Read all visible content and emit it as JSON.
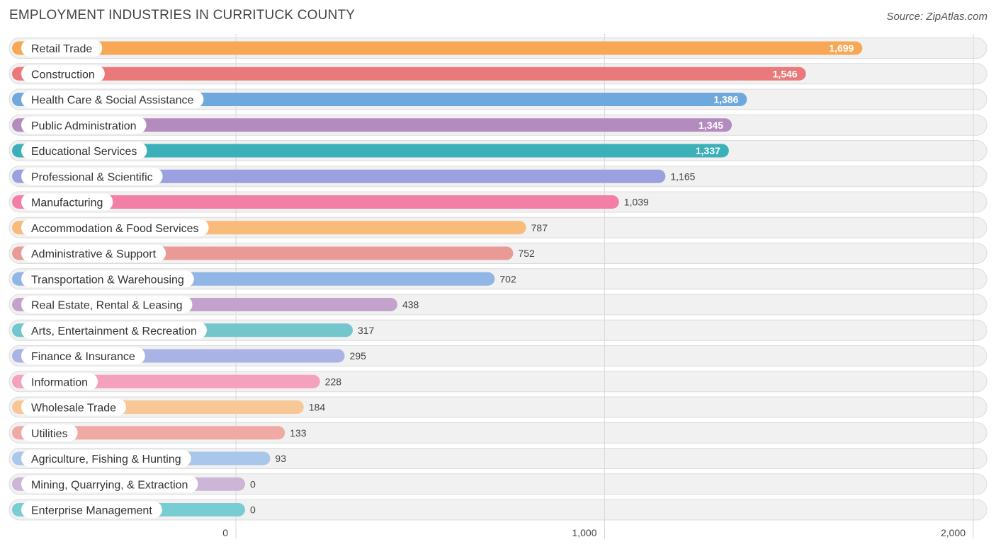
{
  "chart_data": {
    "type": "bar",
    "orientation": "horizontal",
    "title": "EMPLOYMENT INDUSTRIES IN CURRITUCK COUNTY",
    "source": "Source: ZipAtlas.com",
    "xlim": [
      0,
      2000
    ],
    "ticks": [
      0,
      1000,
      2000
    ],
    "tick_labels": [
      "0",
      "1,000",
      "2,000"
    ],
    "categories": [
      "Retail Trade",
      "Construction",
      "Health Care & Social Assistance",
      "Public Administration",
      "Educational Services",
      "Professional & Scientific",
      "Manufacturing",
      "Accommodation & Food Services",
      "Administrative & Support",
      "Transportation & Warehousing",
      "Real Estate, Rental & Leasing",
      "Arts, Entertainment & Recreation",
      "Finance & Insurance",
      "Information",
      "Wholesale Trade",
      "Utilities",
      "Agriculture, Fishing & Hunting",
      "Mining, Quarrying, & Extraction",
      "Enterprise Management"
    ],
    "values": [
      1699,
      1546,
      1386,
      1345,
      1337,
      1165,
      1039,
      787,
      752,
      702,
      438,
      317,
      295,
      228,
      184,
      133,
      93,
      0,
      0
    ],
    "value_labels": [
      "1,699",
      "1,546",
      "1,386",
      "1,345",
      "1,337",
      "1,165",
      "1,039",
      "787",
      "752",
      "702",
      "438",
      "317",
      "295",
      "228",
      "184",
      "133",
      "93",
      "0",
      "0"
    ],
    "colors": [
      "#f7a857",
      "#e9797a",
      "#6fa8dc",
      "#b48bbe",
      "#3bb0b8",
      "#9aa0e0",
      "#f47fa6",
      "#f8bb7a",
      "#ea9a96",
      "#8fb6e4",
      "#c3a3cc",
      "#72c6cc",
      "#aab3e6",
      "#f5a0bd",
      "#f8c796",
      "#f0aaa6",
      "#a9c7ea",
      "#cdb5d8",
      "#78cdd2"
    ]
  }
}
